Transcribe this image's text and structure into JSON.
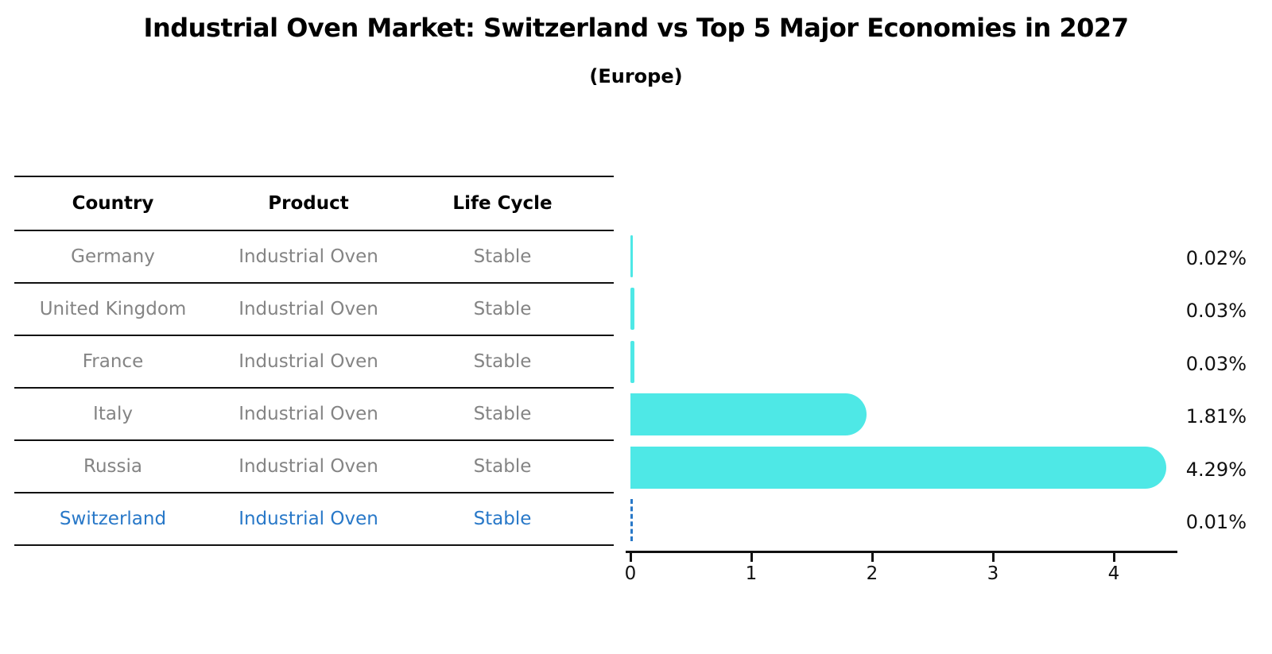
{
  "title": "Industrial Oven Market: Switzerland vs Top 5 Major Economies in 2027",
  "subtitle": "(Europe)",
  "table": {
    "headers": [
      "Country",
      "Product",
      "Life Cycle"
    ],
    "rows": [
      {
        "country": "Germany",
        "product": "Industrial Oven",
        "life_cycle": "Stable",
        "highlight": false
      },
      {
        "country": "United Kingdom",
        "product": "Industrial Oven",
        "life_cycle": "Stable",
        "highlight": false
      },
      {
        "country": "France",
        "product": "Industrial Oven",
        "life_cycle": "Stable",
        "highlight": false
      },
      {
        "country": "Italy",
        "product": "Industrial Oven",
        "life_cycle": "Stable",
        "highlight": false
      },
      {
        "country": "Russia",
        "product": "Industrial Oven",
        "life_cycle": "Stable",
        "highlight": false
      },
      {
        "country": "Switzerland",
        "product": "Industrial Oven",
        "life_cycle": "Stable",
        "highlight": true
      }
    ]
  },
  "chart_data": {
    "type": "bar",
    "orientation": "horizontal",
    "title": "Industrial Oven Market: Switzerland vs Top 5 Major Economies in 2027",
    "subtitle": "(Europe)",
    "categories": [
      "Germany",
      "United Kingdom",
      "France",
      "Italy",
      "Russia",
      "Switzerland"
    ],
    "values": [
      0.02,
      0.03,
      0.03,
      1.81,
      4.29,
      0.01
    ],
    "value_labels": [
      "0.02%",
      "0.03%",
      "0.03%",
      "1.81%",
      "4.29%",
      "0.01%"
    ],
    "x_ticks": [
      "0",
      "1",
      "2",
      "3",
      "4"
    ],
    "xlim": [
      0,
      4.55
    ],
    "grid": false,
    "highlight_index": 5
  },
  "colors": {
    "bar": "#4ee8e6",
    "highlight": "#2878c8",
    "table_text": "#848484",
    "axis": "#111111"
  }
}
